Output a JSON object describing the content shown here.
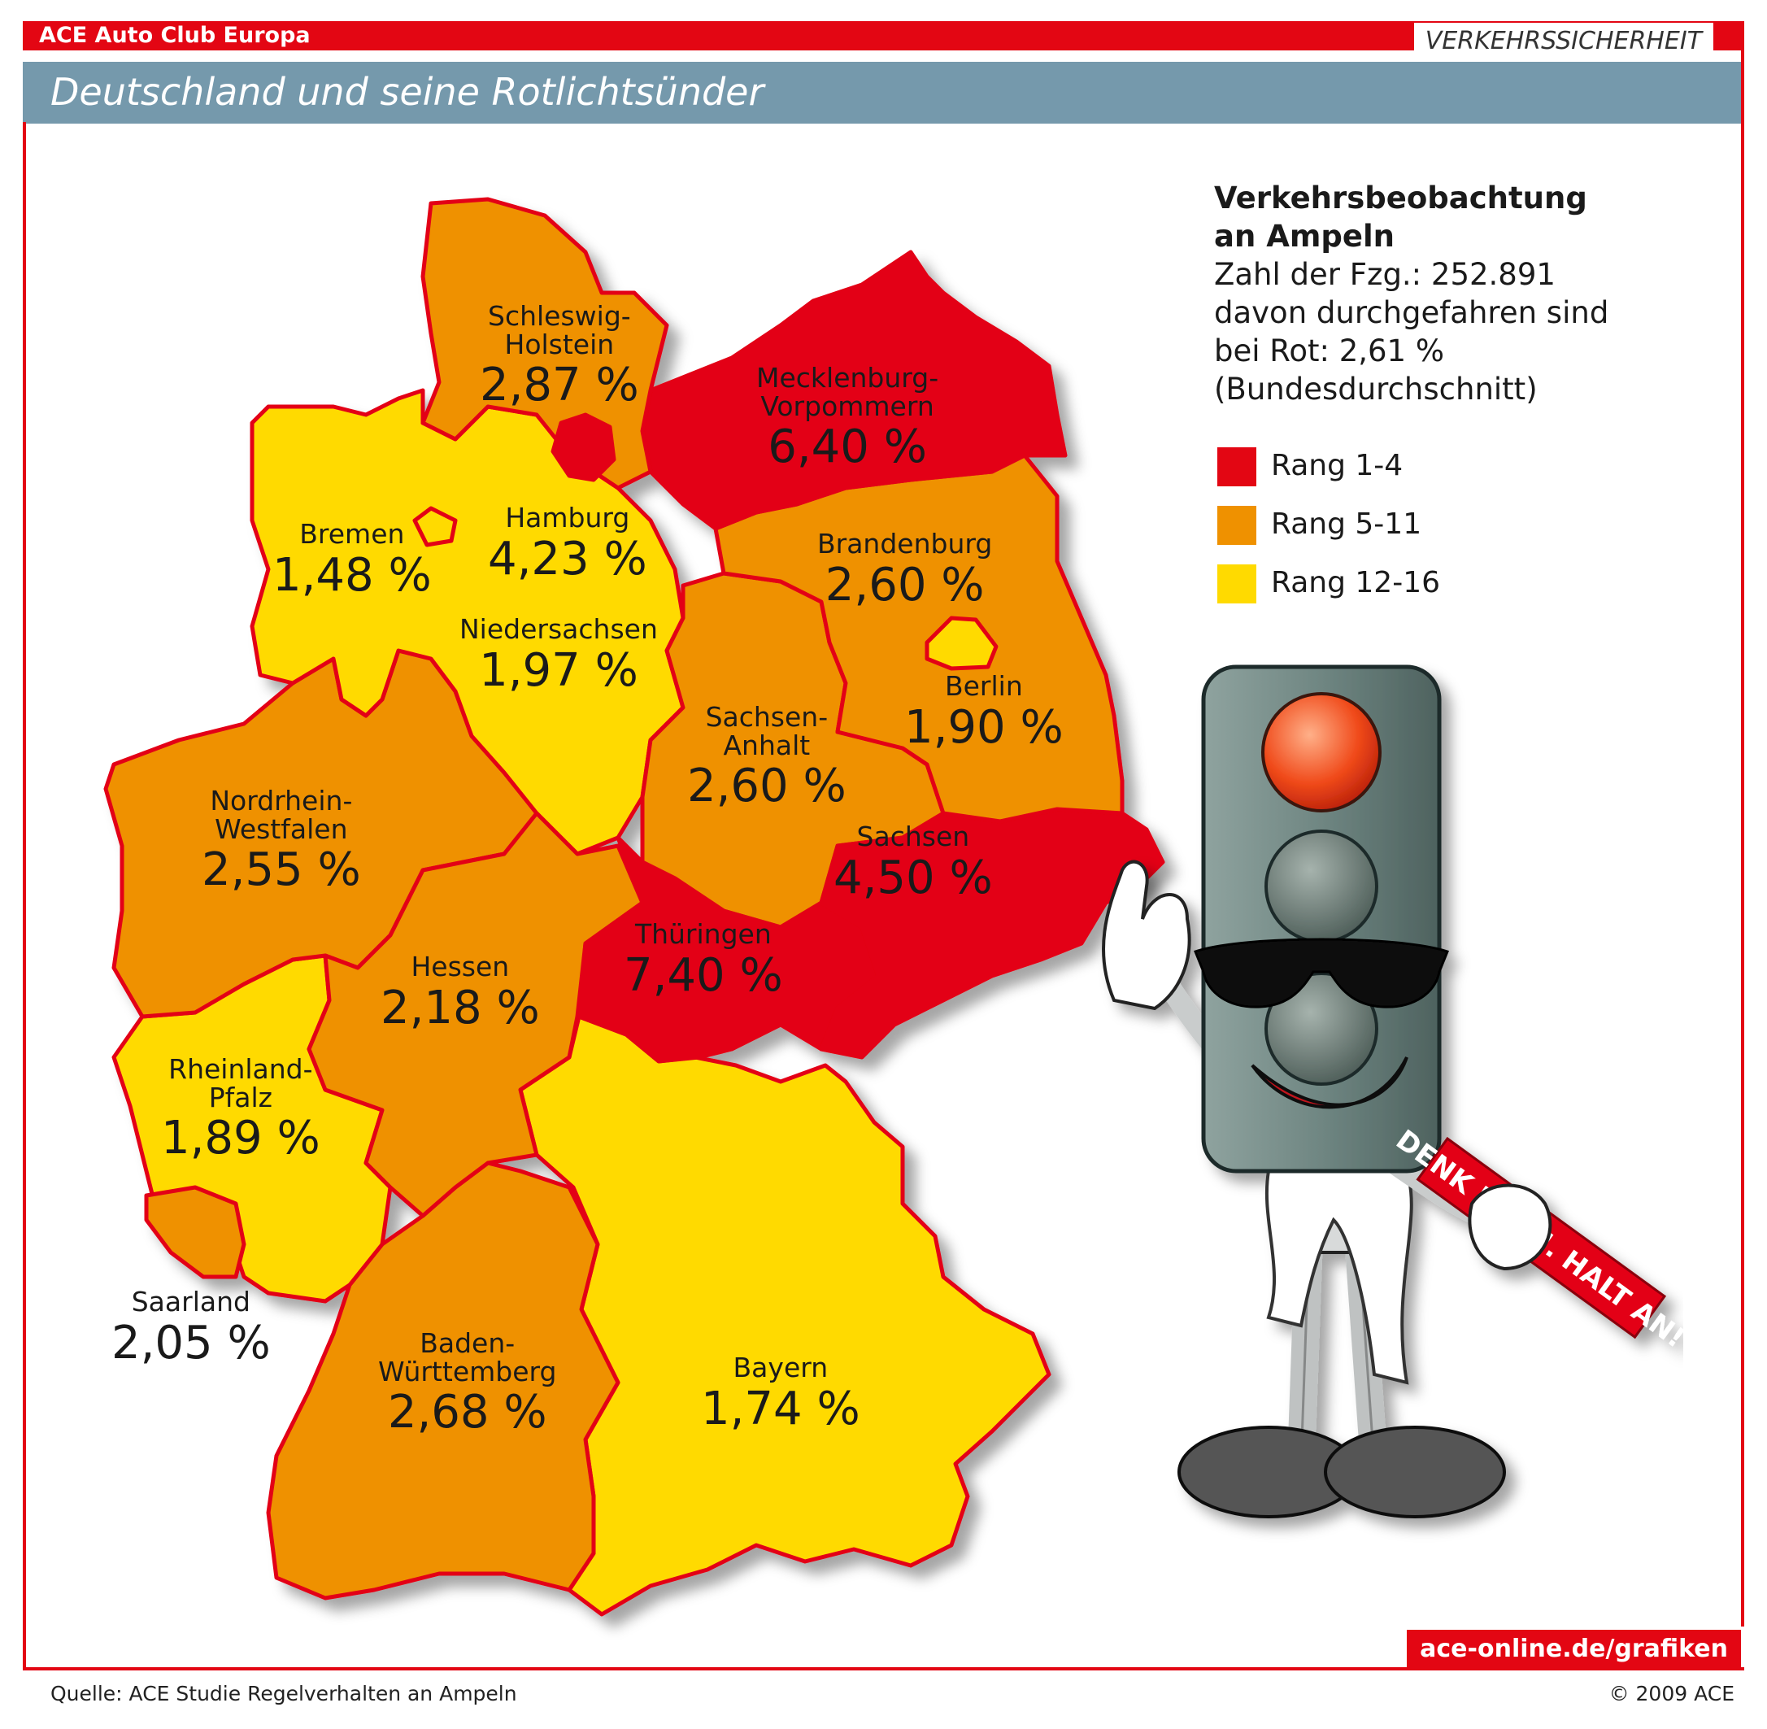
{
  "header": {
    "brand": "ACE Auto Club Europa",
    "category": "VERKEHRSSICHERHEIT"
  },
  "title": "Deutschland und seine Rotlichtsünder",
  "info": {
    "heading_line1": "Verkehrsbeobachtung",
    "heading_line2": "an Ampeln",
    "line1": "Zahl der Fzg.: 252.891",
    "line2": "davon durchgefahren sind",
    "line3": "bei Rot: 2,61 %",
    "line4": "(Bundesdurchschnitt)"
  },
  "legend": [
    {
      "label": "Rang 1-4",
      "color": "#e30613"
    },
    {
      "label": "Rang 5-11",
      "color": "#ef9100"
    },
    {
      "label": "Rang 12-16",
      "color": "#ffda00"
    }
  ],
  "states": {
    "sh": {
      "name_line1": "Schleswig-",
      "name_line2": "Holstein",
      "value": "2,87 %"
    },
    "mv": {
      "name_line1": "Mecklenburg-",
      "name_line2": "Vorpommern",
      "value": "6,40 %"
    },
    "hb": {
      "name_line1": "Bremen",
      "value": "1,48 %"
    },
    "hh": {
      "name_line1": "Hamburg",
      "value": "4,23 %"
    },
    "bb": {
      "name_line1": "Brandenburg",
      "value": "2,60 %"
    },
    "ni": {
      "name_line1": "Niedersachsen",
      "value": "1,97 %"
    },
    "be": {
      "name_line1": "Berlin",
      "value": "1,90 %"
    },
    "st": {
      "name_line1": "Sachsen-",
      "name_line2": "Anhalt",
      "value": "2,60 %"
    },
    "nw": {
      "name_line1": "Nordrhein-",
      "name_line2": "Westfalen",
      "value": "2,55 %"
    },
    "sn": {
      "name_line1": "Sachsen",
      "value": "4,50 %"
    },
    "th": {
      "name_line1": "Thüringen",
      "value": "7,40 %"
    },
    "he": {
      "name_line1": "Hessen",
      "value": "2,18 %"
    },
    "rp": {
      "name_line1": "Rheinland-",
      "name_line2": "Pfalz",
      "value": "1,89 %"
    },
    "sl": {
      "name_line1": "Saarland",
      "value": "2,05 %"
    },
    "bw": {
      "name_line1": "Baden-",
      "name_line2": "Württemberg",
      "value": "2,68 %"
    },
    "by": {
      "name_line1": "Bayern",
      "value": "1,74 %"
    }
  },
  "mascot": {
    "sign": "DENK DRAN. HALT AN!"
  },
  "footer": {
    "url": "ace-online.de/grafiken",
    "source": "Quelle: ACE Studie Regelverhalten an Ampeln",
    "copyright": "© 2009 ACE"
  }
}
